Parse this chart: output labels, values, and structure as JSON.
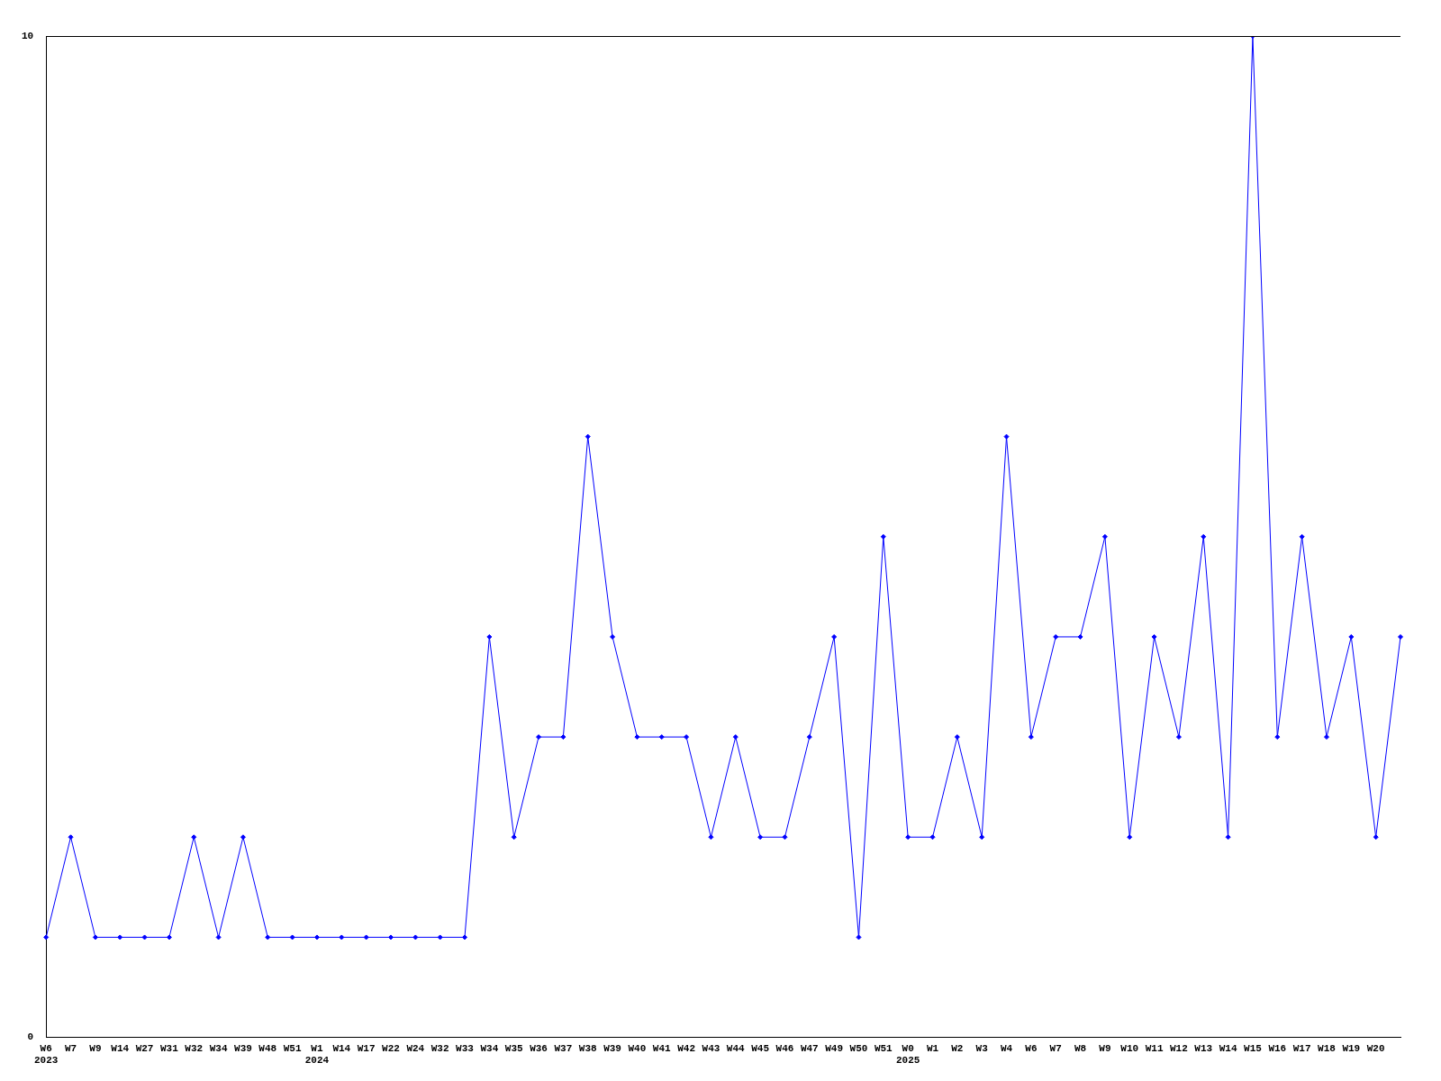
{
  "chart_data": {
    "type": "line",
    "categories": [
      "W6\n2023",
      "W7",
      "W9",
      "W14",
      "W27",
      "W31",
      "W32",
      "W34",
      "W39",
      "W48",
      "W51",
      "W1\n2024",
      "W14",
      "W17",
      "W22",
      "W24",
      "W32",
      "W33",
      "W34",
      "W35",
      "W36",
      "W37",
      "W38",
      "W39",
      "W40",
      "W41",
      "W42",
      "W43",
      "W44",
      "W45",
      "W46",
      "W47",
      "W49",
      "W50",
      "W51",
      "W0\n2025",
      "W1",
      "W2",
      "W3",
      "W4",
      "W6",
      "W7",
      "W8",
      "W9",
      "W10",
      "W11",
      "W12",
      "W13",
      "W14",
      "W15",
      "W16",
      "W17",
      "W18",
      "W19",
      "W20",
      null
    ],
    "series": [
      {
        "color": "#0000ff",
        "values": [
          1,
          2,
          1,
          1,
          1,
          1,
          2,
          1,
          2,
          1,
          1,
          1,
          1,
          1,
          1,
          1,
          1,
          1,
          4,
          2,
          3,
          3,
          6,
          4,
          3,
          3,
          3,
          2,
          3,
          2,
          2,
          3,
          4,
          1,
          5,
          2,
          2,
          3,
          2,
          6,
          3,
          4,
          4,
          5,
          2,
          4,
          3,
          5,
          2,
          10,
          3,
          5,
          3,
          4,
          2,
          4
        ]
      }
    ],
    "ylim": [
      0,
      10
    ],
    "yticks": [
      0,
      10
    ],
    "grid": false,
    "legend": false,
    "marker": "diamond",
    "line_style": "solid"
  }
}
